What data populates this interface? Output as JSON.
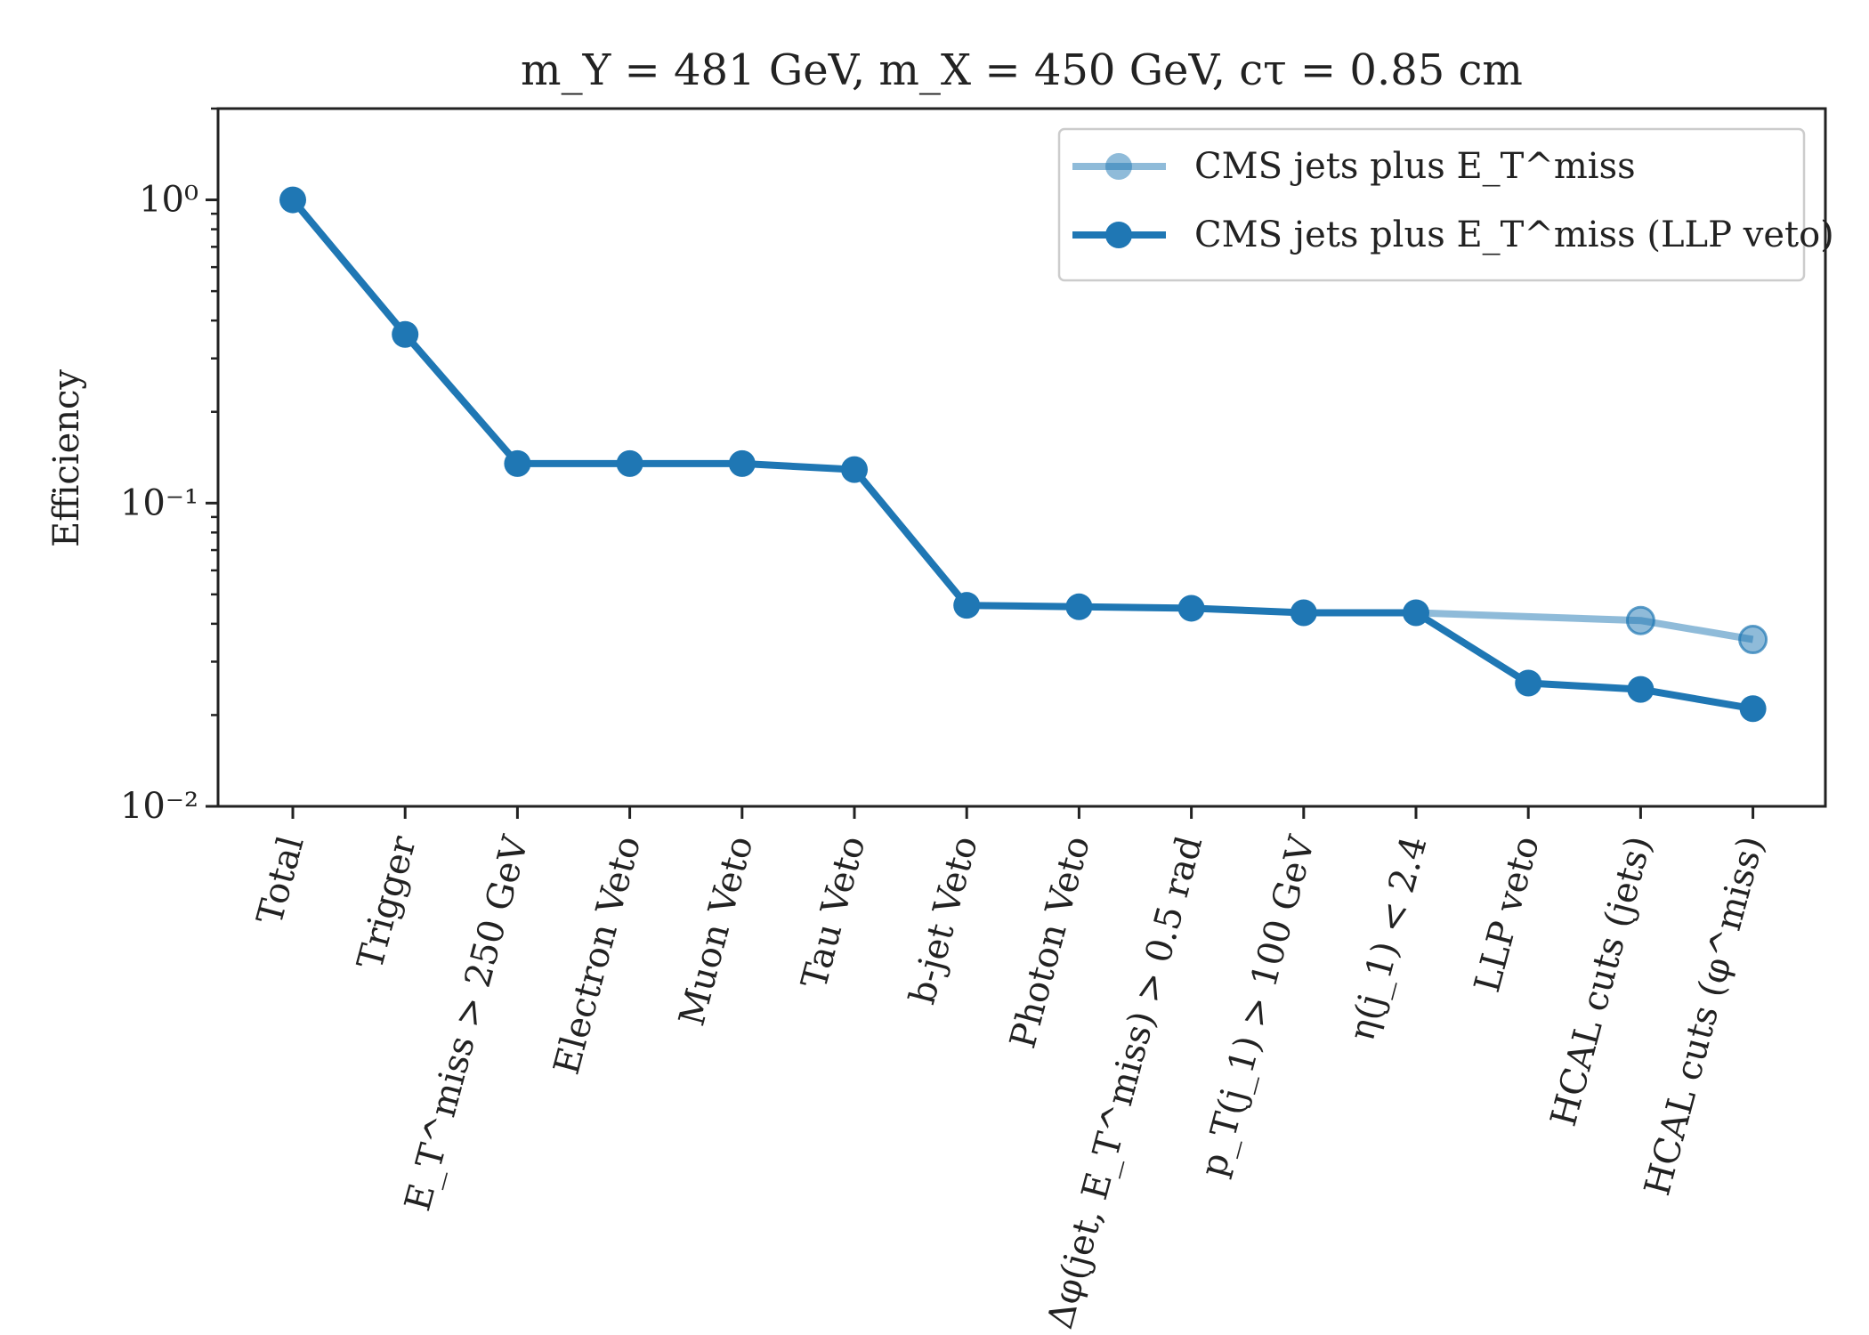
{
  "colors": {
    "series": "#1f77b4",
    "axis": "#222222",
    "background": "#ffffff"
  },
  "chart_data": {
    "type": "line",
    "title": "m_Y = 481 GeV, m_X = 450 GeV, cτ = 0.85 cm",
    "xlabel": "",
    "ylabel": "Efficiency",
    "yscale": "log",
    "ylim": [
      0.01,
      2
    ],
    "yticks": [
      {
        "value": 1,
        "label": "10⁰"
      },
      {
        "value": 0.1,
        "label": "10⁻¹"
      },
      {
        "value": 0.01,
        "label": "10⁻²"
      }
    ],
    "categories": [
      "Total",
      "Trigger",
      "E_T^miss > 250 GeV",
      "Electron Veto",
      "Muon Veto",
      "Tau Veto",
      "b-jet Veto",
      "Photon Veto",
      "Δφ(jet, E_T^miss) > 0.5 rad",
      "p_T(j_1) > 100 GeV",
      "η(j_1) < 2.4",
      "LLP veto",
      "HCAL cuts (jets)",
      "HCAL cuts (φ^miss)"
    ],
    "series": [
      {
        "name": "CMS jets plus E_T^miss",
        "style": "faded",
        "values": [
          null,
          null,
          null,
          null,
          null,
          null,
          null,
          null,
          null,
          null,
          0.0435,
          null,
          0.041,
          0.0355
        ]
      },
      {
        "name": "CMS jets plus E_T^miss (LLP veto)",
        "style": "solid",
        "values": [
          1.0,
          0.36,
          0.135,
          0.135,
          0.135,
          0.129,
          0.046,
          0.0455,
          0.045,
          0.0435,
          0.0435,
          0.0255,
          0.0243,
          0.021
        ]
      }
    ],
    "legend": {
      "position": "top-right"
    },
    "grid": false
  }
}
